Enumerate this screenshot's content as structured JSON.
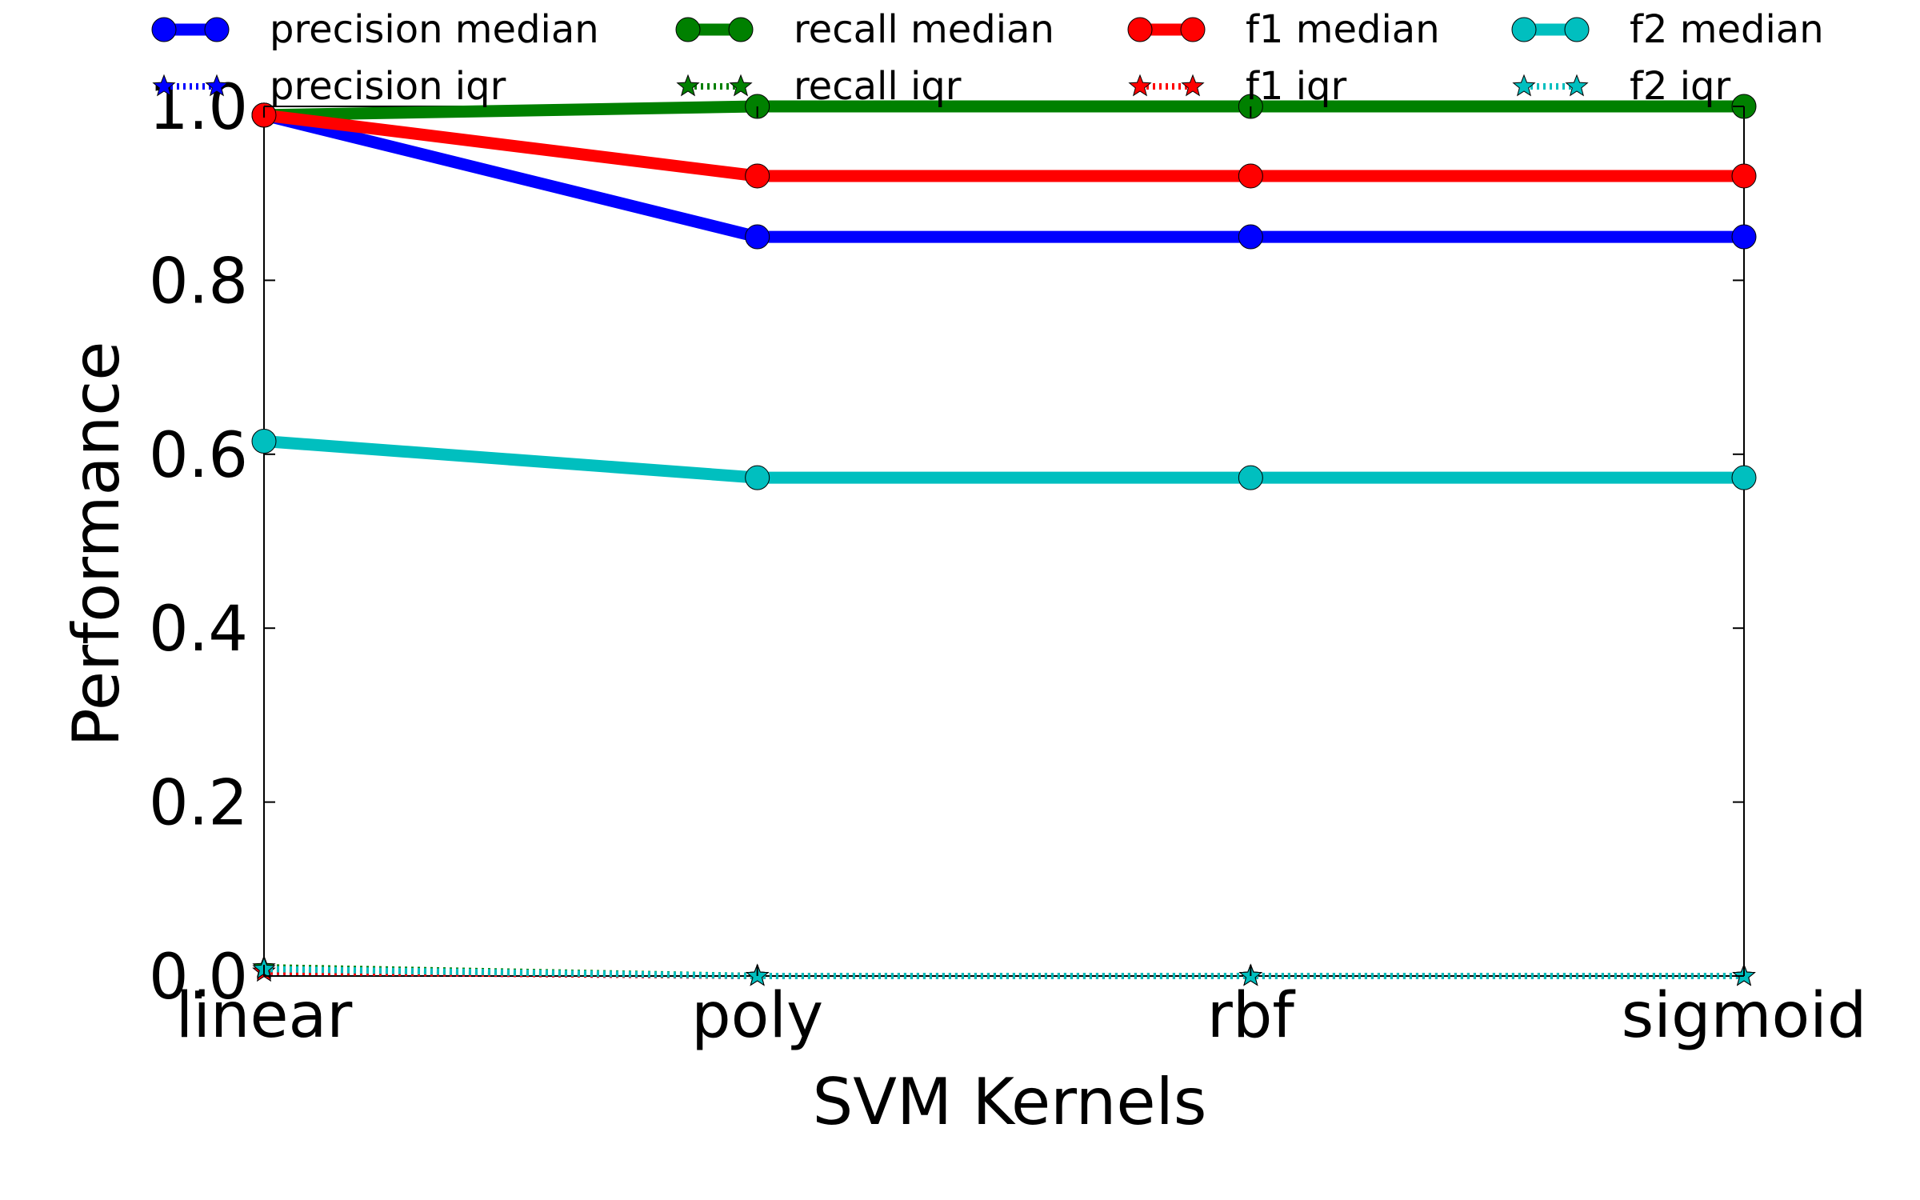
{
  "chart_data": {
    "type": "line",
    "xlabel": "SVM Kernels",
    "ylabel": "Performance",
    "categories": [
      "linear",
      "poly",
      "rbf",
      "sigmoid"
    ],
    "ylim": [
      0.0,
      1.0
    ],
    "yticks": [
      "0.0",
      "0.2",
      "0.4",
      "0.6",
      "0.8",
      "1.0"
    ],
    "legend_position": "top",
    "series": [
      {
        "name": "precision median",
        "color": "#0000ff",
        "style": "solid",
        "marker": "circle",
        "values": [
          0.99,
          0.85,
          0.85,
          0.85
        ]
      },
      {
        "name": "recall median",
        "color": "#008000",
        "style": "solid",
        "marker": "circle",
        "values": [
          0.99,
          1.0,
          1.0,
          1.0
        ]
      },
      {
        "name": "f1 median",
        "color": "#ff0000",
        "style": "solid",
        "marker": "circle",
        "values": [
          0.99,
          0.92,
          0.92,
          0.92
        ]
      },
      {
        "name": "f2 median",
        "color": "#00bfbf",
        "style": "solid",
        "marker": "circle",
        "values": [
          0.615,
          0.573,
          0.573,
          0.573
        ]
      },
      {
        "name": "precision iqr",
        "color": "#0000ff",
        "style": "dotted",
        "marker": "star",
        "values": [
          0.005,
          0.0,
          0.0,
          0.0
        ]
      },
      {
        "name": "recall iqr",
        "color": "#008000",
        "style": "dotted",
        "marker": "star",
        "values": [
          0.01,
          0.0,
          0.0,
          0.0
        ]
      },
      {
        "name": "f1 iqr",
        "color": "#ff0000",
        "style": "dotted",
        "marker": "star",
        "values": [
          0.005,
          0.0,
          0.0,
          0.0
        ]
      },
      {
        "name": "f2 iqr",
        "color": "#00bfbf",
        "style": "dotted",
        "marker": "star",
        "values": [
          0.008,
          0.0,
          0.0,
          0.0
        ]
      }
    ]
  }
}
